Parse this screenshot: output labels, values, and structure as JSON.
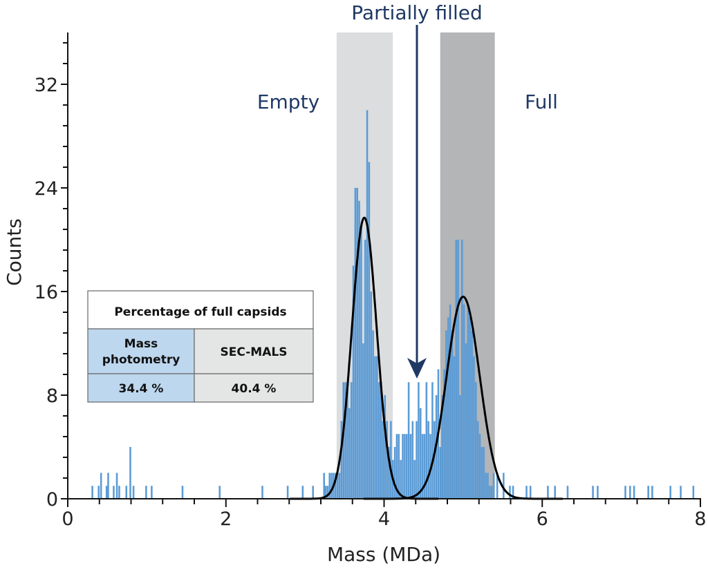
{
  "chart_data": {
    "type": "bar",
    "subtype": "histogram",
    "xlabel": "Mass (MDa)",
    "ylabel": "Counts",
    "xlim": [
      0,
      8
    ],
    "ylim": [
      0,
      36
    ],
    "x_ticks": [
      0,
      2,
      4,
      6,
      8
    ],
    "y_ticks": [
      0,
      8,
      16,
      24,
      32
    ],
    "grid": false,
    "bin_width": 0.025,
    "bar_color": "#5b9bd5",
    "bins": [
      [
        0.3,
        1
      ],
      [
        0.38,
        1
      ],
      [
        0.41,
        2
      ],
      [
        0.48,
        1
      ],
      [
        0.5,
        2
      ],
      [
        0.57,
        1
      ],
      [
        0.61,
        2
      ],
      [
        0.64,
        1
      ],
      [
        0.73,
        1
      ],
      [
        0.78,
        4
      ],
      [
        0.82,
        1
      ],
      [
        0.98,
        1
      ],
      [
        1.05,
        1
      ],
      [
        1.44,
        1
      ],
      [
        1.91,
        1
      ],
      [
        2.45,
        1
      ],
      [
        2.77,
        1
      ],
      [
        2.96,
        1
      ],
      [
        3.09,
        1
      ],
      [
        3.23,
        2
      ],
      [
        3.25,
        1
      ],
      [
        3.275,
        1
      ],
      [
        3.3,
        2
      ],
      [
        3.325,
        2
      ],
      [
        3.35,
        2
      ],
      [
        3.375,
        2
      ],
      [
        3.4,
        2
      ],
      [
        3.425,
        2
      ],
      [
        3.45,
        6
      ],
      [
        3.475,
        9
      ],
      [
        3.5,
        9
      ],
      [
        3.525,
        9
      ],
      [
        3.55,
        7
      ],
      [
        3.575,
        9
      ],
      [
        3.6,
        18
      ],
      [
        3.625,
        24
      ],
      [
        3.65,
        24
      ],
      [
        3.675,
        23
      ],
      [
        3.7,
        21
      ],
      [
        3.725,
        12
      ],
      [
        3.75,
        20
      ],
      [
        3.775,
        30
      ],
      [
        3.8,
        26
      ],
      [
        3.825,
        16
      ],
      [
        3.85,
        13
      ],
      [
        3.875,
        11
      ],
      [
        3.9,
        11
      ],
      [
        3.925,
        9
      ],
      [
        3.95,
        9
      ],
      [
        3.975,
        6
      ],
      [
        4.0,
        8
      ],
      [
        4.025,
        6
      ],
      [
        4.05,
        4
      ],
      [
        4.075,
        6
      ],
      [
        4.1,
        3
      ],
      [
        4.125,
        4
      ],
      [
        4.15,
        5
      ],
      [
        4.175,
        5
      ],
      [
        4.2,
        3
      ],
      [
        4.225,
        5
      ],
      [
        4.25,
        5
      ],
      [
        4.275,
        5
      ],
      [
        4.3,
        9
      ],
      [
        4.325,
        5
      ],
      [
        4.35,
        6
      ],
      [
        4.375,
        3
      ],
      [
        4.4,
        6
      ],
      [
        4.425,
        9
      ],
      [
        4.45,
        7
      ],
      [
        4.475,
        5
      ],
      [
        4.5,
        5
      ],
      [
        4.525,
        9
      ],
      [
        4.55,
        6
      ],
      [
        4.575,
        5
      ],
      [
        4.6,
        9
      ],
      [
        4.625,
        6
      ],
      [
        4.65,
        8
      ],
      [
        4.675,
        10
      ],
      [
        4.7,
        4
      ],
      [
        4.725,
        8
      ],
      [
        4.75,
        10
      ],
      [
        4.775,
        13
      ],
      [
        4.8,
        14
      ],
      [
        4.825,
        15
      ],
      [
        4.85,
        13
      ],
      [
        4.875,
        11
      ],
      [
        4.9,
        20
      ],
      [
        4.925,
        20
      ],
      [
        4.95,
        8
      ],
      [
        4.975,
        20
      ],
      [
        5.0,
        15
      ],
      [
        5.025,
        12
      ],
      [
        5.05,
        15
      ],
      [
        5.075,
        14
      ],
      [
        5.1,
        13
      ],
      [
        5.125,
        11
      ],
      [
        5.15,
        9
      ],
      [
        5.175,
        6
      ],
      [
        5.2,
        5
      ],
      [
        5.225,
        4
      ],
      [
        5.25,
        4
      ],
      [
        5.275,
        2
      ],
      [
        5.3,
        2
      ],
      [
        5.325,
        1
      ],
      [
        5.35,
        1
      ],
      [
        5.375,
        2
      ],
      [
        5.42,
        2
      ],
      [
        5.5,
        2
      ],
      [
        5.58,
        1
      ],
      [
        5.62,
        1
      ],
      [
        5.79,
        1
      ],
      [
        5.84,
        1
      ],
      [
        6.06,
        1
      ],
      [
        6.15,
        1
      ],
      [
        6.31,
        1
      ],
      [
        6.63,
        1
      ],
      [
        6.69,
        1
      ],
      [
        7.04,
        1
      ],
      [
        7.1,
        1
      ],
      [
        7.15,
        1
      ],
      [
        7.33,
        1
      ],
      [
        7.38,
        1
      ],
      [
        7.61,
        1
      ],
      [
        7.74,
        1
      ],
      [
        7.9,
        1
      ]
    ],
    "gaussian_fits": [
      {
        "mean": 3.75,
        "sigma": 0.157,
        "amplitude": 21.7,
        "color": "#000000"
      },
      {
        "mean": 5.0,
        "sigma": 0.21,
        "amplitude": 15.6,
        "color": "#000000"
      }
    ],
    "shaded_regions": [
      {
        "label": "Empty",
        "x_range": [
          3.4,
          4.11
        ],
        "color": "#dcdddf"
      },
      {
        "label": "Full",
        "x_range": [
          4.71,
          5.4
        ],
        "color": "#b4b5b7"
      }
    ],
    "annotations": [
      {
        "text": "Partially filled",
        "x": 4.42,
        "type": "arrow",
        "color": "#1f3864"
      }
    ]
  },
  "table": {
    "title": "Percentage of full capsids",
    "columns": [
      {
        "header_lines": [
          "Mass",
          "photometry"
        ],
        "value": "34.4 %",
        "color": "#bdd7ee"
      },
      {
        "header_lines": [
          "SEC-MALS"
        ],
        "value": "40.4 %",
        "color": "#e4e5e5"
      }
    ]
  }
}
